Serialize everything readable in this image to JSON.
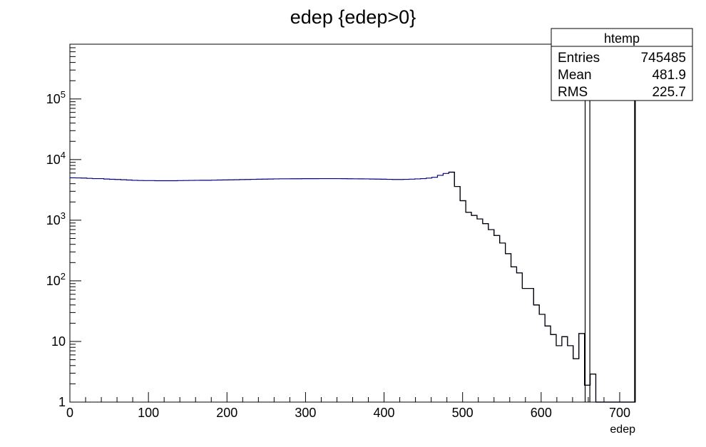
{
  "chart_data": {
    "type": "histogram",
    "title": "edep {edep>0}",
    "xlabel": "edep",
    "ylabel": "",
    "xlim": [
      0,
      720
    ],
    "ylim": [
      1,
      800000
    ],
    "log_y": true,
    "grid": false,
    "line_color": "#000080",
    "x_ticks": [
      0,
      100,
      200,
      300,
      400,
      500,
      600,
      700
    ],
    "y_ticks": [
      {
        "value": 1,
        "base": "1",
        "exp": ""
      },
      {
        "value": 10,
        "base": "10",
        "exp": ""
      },
      {
        "value": 100,
        "base": "10",
        "exp": "2"
      },
      {
        "value": 1000,
        "base": "10",
        "exp": "3"
      },
      {
        "value": 10000,
        "base": "10",
        "exp": "4"
      },
      {
        "value": 100000,
        "base": "10",
        "exp": "5"
      }
    ],
    "bin_width": 7.2,
    "counts": [
      5000,
      4980,
      4960,
      4900,
      4850,
      4850,
      4780,
      4730,
      4700,
      4650,
      4600,
      4550,
      4520,
      4500,
      4500,
      4480,
      4480,
      4480,
      4480,
      4500,
      4520,
      4530,
      4550,
      4560,
      4560,
      4580,
      4600,
      4620,
      4630,
      4650,
      4680,
      4700,
      4720,
      4740,
      4760,
      4780,
      4800,
      4820,
      4820,
      4830,
      4830,
      4840,
      4840,
      4840,
      4850,
      4850,
      4850,
      4850,
      4840,
      4830,
      4820,
      4810,
      4800,
      4780,
      4760,
      4740,
      4720,
      4700,
      4700,
      4720,
      4750,
      4800,
      4850,
      4950,
      5100,
      5500,
      5900,
      6200,
      3600,
      2100,
      1350,
      1200,
      1050,
      880,
      700,
      560,
      420,
      280,
      170,
      135,
      75,
      75,
      40,
      28,
      18,
      13,
      8.5,
      12,
      8.5,
      5.2,
      13.5,
      1.9,
      2.9,
      1,
      1,
      1,
      1,
      1,
      1,
      1
    ],
    "spikes": [
      {
        "x": 656,
        "value": 1000000
      },
      {
        "x": 662,
        "value": 1000000
      },
      {
        "x": 719,
        "value": 1000000
      }
    ],
    "stats_box": {
      "title": "htemp",
      "rows": [
        {
          "label": "Entries",
          "value": "745485"
        },
        {
          "label": "Mean",
          "value": "481.9"
        },
        {
          "label": "RMS",
          "value": "225.7"
        }
      ]
    }
  }
}
